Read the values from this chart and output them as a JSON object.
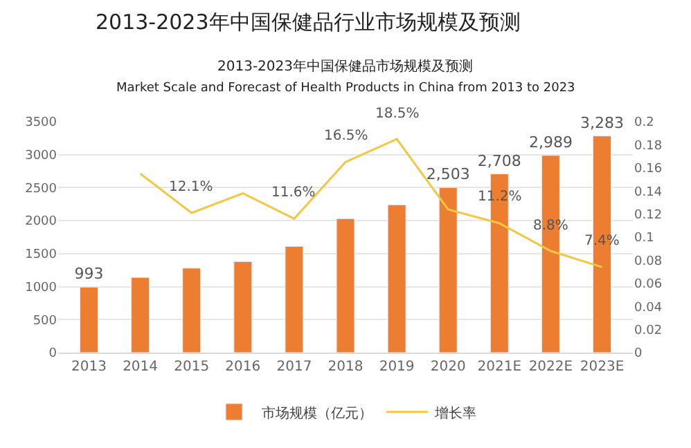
{
  "chart_data": {
    "type": "bar",
    "title": "2013-2023年中国保健品行业市场规模及预测",
    "subtitle": "2013-2023年中国保健品市场规模及预测",
    "annotations": [
      "Market Scale and Forecast of Health Products in China from 2013 to 2023"
    ],
    "categories": [
      "2013",
      "2014",
      "2015",
      "2016",
      "2017",
      "2018",
      "2019",
      "2020",
      "2021E",
      "2022E",
      "2023E"
    ],
    "series": [
      {
        "name": "市场规模（亿元）",
        "color": "#ed7d31",
        "values": [
          993,
          1140,
          1280,
          1380,
          1610,
          2030,
          2240,
          2503,
          2708,
          2989,
          3283
        ],
        "value_labels": [
          "993",
          null,
          null,
          null,
          null,
          null,
          null,
          "2,503",
          "2,708",
          "2,989",
          "3,283"
        ]
      },
      {
        "name": "增长率",
        "type": "line",
        "axis": "y2",
        "color": "#f2c744",
        "values": [
          null,
          0.155,
          0.121,
          0.138,
          0.116,
          0.165,
          0.185,
          0.124,
          0.112,
          0.088,
          0.074
        ],
        "value_labels": [
          null,
          null,
          "12.1%",
          null,
          "11.6%",
          "16.5%",
          "18.5%",
          null,
          "11.2%",
          "8.8%",
          "7.4%"
        ]
      }
    ],
    "ylim": [
      0,
      3500
    ],
    "yticks": [
      0,
      500,
      1000,
      1500,
      2000,
      2500,
      3000,
      3500
    ],
    "y2lim": [
      0,
      0.2
    ],
    "y2ticks": [
      0,
      0.02,
      0.04,
      0.06,
      0.08,
      0.1,
      0.12,
      0.14,
      0.16,
      0.18,
      0.2
    ],
    "grid": "y",
    "legend": "bottom",
    "marker": "none",
    "line_style": "solid"
  }
}
